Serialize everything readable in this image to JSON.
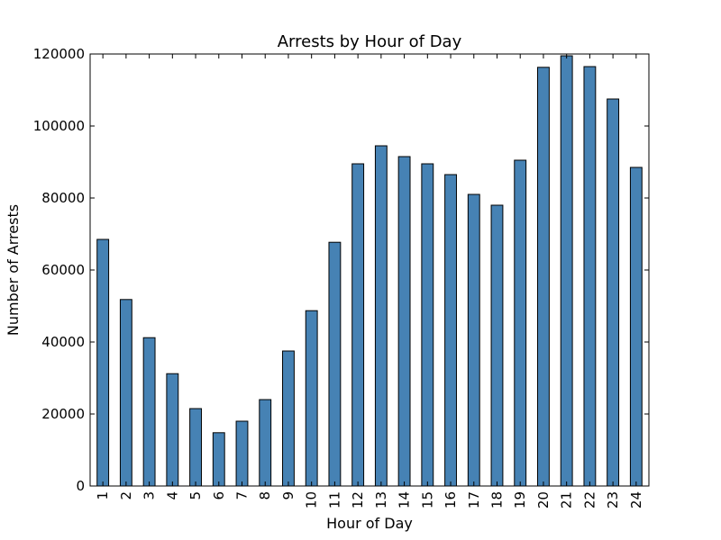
{
  "chart_data": {
    "type": "bar",
    "title": "Arrests by Hour of Day",
    "xlabel": "Hour of Day",
    "ylabel": "Number of Arrests",
    "categories": [
      "1",
      "2",
      "3",
      "4",
      "5",
      "6",
      "7",
      "8",
      "9",
      "10",
      "11",
      "12",
      "13",
      "14",
      "15",
      "16",
      "17",
      "18",
      "19",
      "20",
      "21",
      "22",
      "23",
      "24"
    ],
    "values": [
      68500,
      51800,
      41200,
      31200,
      21500,
      14800,
      18000,
      24000,
      37500,
      48700,
      67700,
      89500,
      94500,
      91500,
      89500,
      86500,
      81000,
      78000,
      90500,
      116300,
      119500,
      116500,
      107500,
      88500
    ],
    "ylim": [
      0,
      120000
    ],
    "yticks": [
      0,
      20000,
      40000,
      60000,
      80000,
      100000,
      120000
    ],
    "grid": false,
    "legend": "none",
    "bar_color": "#4682b4",
    "edge_color": "#000000"
  }
}
